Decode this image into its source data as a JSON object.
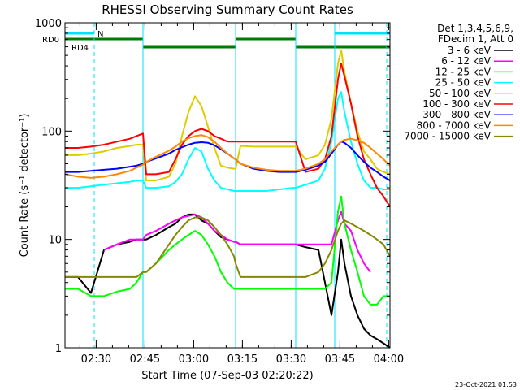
{
  "chart_data": {
    "type": "line",
    "title": "RHESSI Observing Summary Count Rates",
    "xlabel": "Start Time (07-Sep-03 02:20:22)",
    "ylabel": "Count Rate (s⁻¹ detector⁻¹)",
    "yscale": "log",
    "ylim": [
      1,
      1000
    ],
    "xlim_minutes": [
      0,
      100
    ],
    "x_tick_labels": [
      "02:30",
      "02:45",
      "03:00",
      "03:15",
      "03:30",
      "03:45",
      "04:00"
    ],
    "x_tick_minutes": [
      9.6,
      24.6,
      39.6,
      54.6,
      69.6,
      84.6,
      99.6
    ],
    "y_tick_values": [
      1,
      10,
      100,
      1000
    ],
    "y_tick_labels": [
      "1",
      "10",
      "100",
      "1000"
    ],
    "legend_header": [
      "Det 1,3,4,5,6,9,",
      "FDecim 1, Att 0"
    ],
    "legend_position": "right",
    "timestamp": "23-Oct-2021 01:53",
    "flags": [
      {
        "name": "N",
        "color": "#00e0ff",
        "segments": [
          [
            0,
            9.0
          ],
          [
            83.0,
            100
          ]
        ]
      },
      {
        "name": "RD0",
        "color": "#007a00",
        "segments": [
          [
            0,
            24.0
          ],
          [
            52.5,
            71.0
          ]
        ]
      },
      {
        "name": "RD4",
        "color": "#007a00",
        "segments": [
          [
            24.0,
            52.5
          ],
          [
            71.0,
            100
          ]
        ]
      }
    ],
    "vertical_lines": [
      {
        "minute": 9.0,
        "style": "dashed",
        "color": "#00e0ff"
      },
      {
        "minute": 24.0,
        "style": "solid",
        "color": "#00e0ff"
      },
      {
        "minute": 52.5,
        "style": "solid",
        "color": "#00e0ff"
      },
      {
        "minute": 71.0,
        "style": "solid",
        "color": "#00e0ff"
      },
      {
        "minute": 83.0,
        "style": "solid",
        "color": "#00e0ff"
      },
      {
        "minute": 99.0,
        "style": "dashed",
        "color": "#00e0ff"
      }
    ],
    "x": [
      0,
      4,
      8,
      12,
      16,
      20,
      22,
      24,
      25,
      28,
      32,
      34,
      36,
      38,
      40,
      42,
      44,
      46,
      48,
      50,
      52,
      52.5,
      54,
      58,
      62,
      66,
      70,
      71,
      74,
      78,
      80,
      82,
      84,
      85,
      86,
      88,
      90,
      92,
      94,
      96,
      98,
      100
    ],
    "series": [
      {
        "name": "3 - 6 keV",
        "color": "#000000",
        "values": [
          4.5,
          4.5,
          3.2,
          8,
          9,
          9.5,
          10,
          10,
          10,
          11,
          13,
          14,
          16,
          17,
          17,
          15,
          14,
          12,
          10.5,
          10,
          9.5,
          9.5,
          9,
          9,
          9,
          9,
          9,
          9,
          8.5,
          8,
          4,
          2,
          5,
          10,
          6,
          3,
          2,
          1.5,
          1.3,
          1.2,
          1.1,
          1
        ]
      },
      {
        "name": "6 - 12 keV",
        "color": "#ff00ff",
        "values": [
          null,
          null,
          null,
          8,
          9,
          10,
          10,
          10,
          11,
          12,
          14,
          15,
          16,
          16.5,
          17,
          16,
          14,
          12,
          11,
          10,
          9.5,
          9.5,
          9,
          9,
          9,
          9,
          9,
          9,
          9,
          9,
          9,
          9,
          15,
          18,
          14,
          12,
          8,
          6,
          5,
          null,
          null,
          null
        ]
      },
      {
        "name": "12 - 25 keV",
        "color": "#00ff00",
        "values": [
          3.5,
          3.5,
          3,
          3,
          3.3,
          3.5,
          4,
          5,
          5,
          6,
          8,
          9,
          10,
          11,
          12,
          11,
          9,
          7,
          5,
          4,
          3.5,
          3.5,
          3.5,
          3.5,
          3.5,
          3.5,
          3.5,
          3.5,
          3.5,
          3.5,
          3.5,
          4,
          18,
          25,
          14,
          8,
          5,
          3,
          2.5,
          2.5,
          3,
          3
        ]
      },
      {
        "name": "25 - 50 keV",
        "color": "#00ffff",
        "values": [
          30,
          30,
          31,
          32,
          33,
          34,
          35,
          35,
          30,
          30,
          31,
          34,
          40,
          55,
          70,
          65,
          45,
          35,
          30,
          29,
          28,
          28,
          28,
          28,
          28,
          29,
          30,
          30,
          32,
          35,
          45,
          80,
          200,
          230,
          150,
          80,
          50,
          35,
          30,
          30,
          29,
          29
        ]
      },
      {
        "name": "50 - 100 keV",
        "color": "#ddcc00",
        "values": [
          60,
          60,
          62,
          65,
          70,
          73,
          75,
          75,
          35,
          35,
          38,
          50,
          90,
          150,
          210,
          170,
          110,
          70,
          48,
          46,
          45,
          45,
          73,
          72,
          72,
          72,
          72,
          72,
          55,
          60,
          75,
          130,
          420,
          560,
          350,
          180,
          100,
          65,
          55,
          45,
          42,
          40
        ]
      },
      {
        "name": "100 - 300 keV",
        "color": "#ff0000",
        "values": [
          70,
          70,
          72,
          75,
          80,
          85,
          90,
          95,
          40,
          40,
          42,
          55,
          75,
          90,
          100,
          105,
          100,
          90,
          85,
          80,
          80,
          80,
          80,
          80,
          80,
          80,
          80,
          80,
          42,
          45,
          55,
          90,
          300,
          420,
          320,
          180,
          90,
          55,
          40,
          30,
          25,
          20
        ]
      },
      {
        "name": "300 - 800 keV",
        "color": "#0000ff",
        "values": [
          42,
          42,
          43,
          44,
          45,
          47,
          48,
          50,
          52,
          56,
          62,
          67,
          71,
          75,
          78,
          79,
          78,
          74,
          68,
          62,
          56,
          55,
          50,
          45,
          43,
          42,
          42,
          42,
          44,
          48,
          52,
          62,
          75,
          80,
          78,
          70,
          60,
          52,
          46,
          42,
          38,
          35
        ]
      },
      {
        "name": "800 - 7000 keV",
        "color": "#ff8800",
        "values": [
          40,
          38,
          37,
          38,
          40,
          43,
          46,
          49,
          52,
          58,
          66,
          72,
          80,
          86,
          90,
          92,
          88,
          80,
          70,
          62,
          56,
          55,
          50,
          46,
          44,
          43,
          43,
          43,
          45,
          50,
          55,
          65,
          75,
          80,
          83,
          85,
          82,
          78,
          70,
          62,
          55,
          48
        ]
      },
      {
        "name": "7000 - 15000 keV",
        "color": "#888800",
        "values": [
          4.5,
          4.5,
          4.5,
          4.5,
          4.5,
          4.5,
          4.5,
          5,
          5,
          6,
          9,
          11,
          13,
          15,
          16,
          16,
          15,
          13,
          11,
          9,
          7,
          6,
          4.5,
          4.5,
          4.5,
          4.5,
          4.5,
          4.5,
          4.5,
          5,
          6,
          8,
          12,
          14,
          15,
          14,
          13,
          12,
          11,
          10,
          9,
          7
        ]
      }
    ]
  }
}
